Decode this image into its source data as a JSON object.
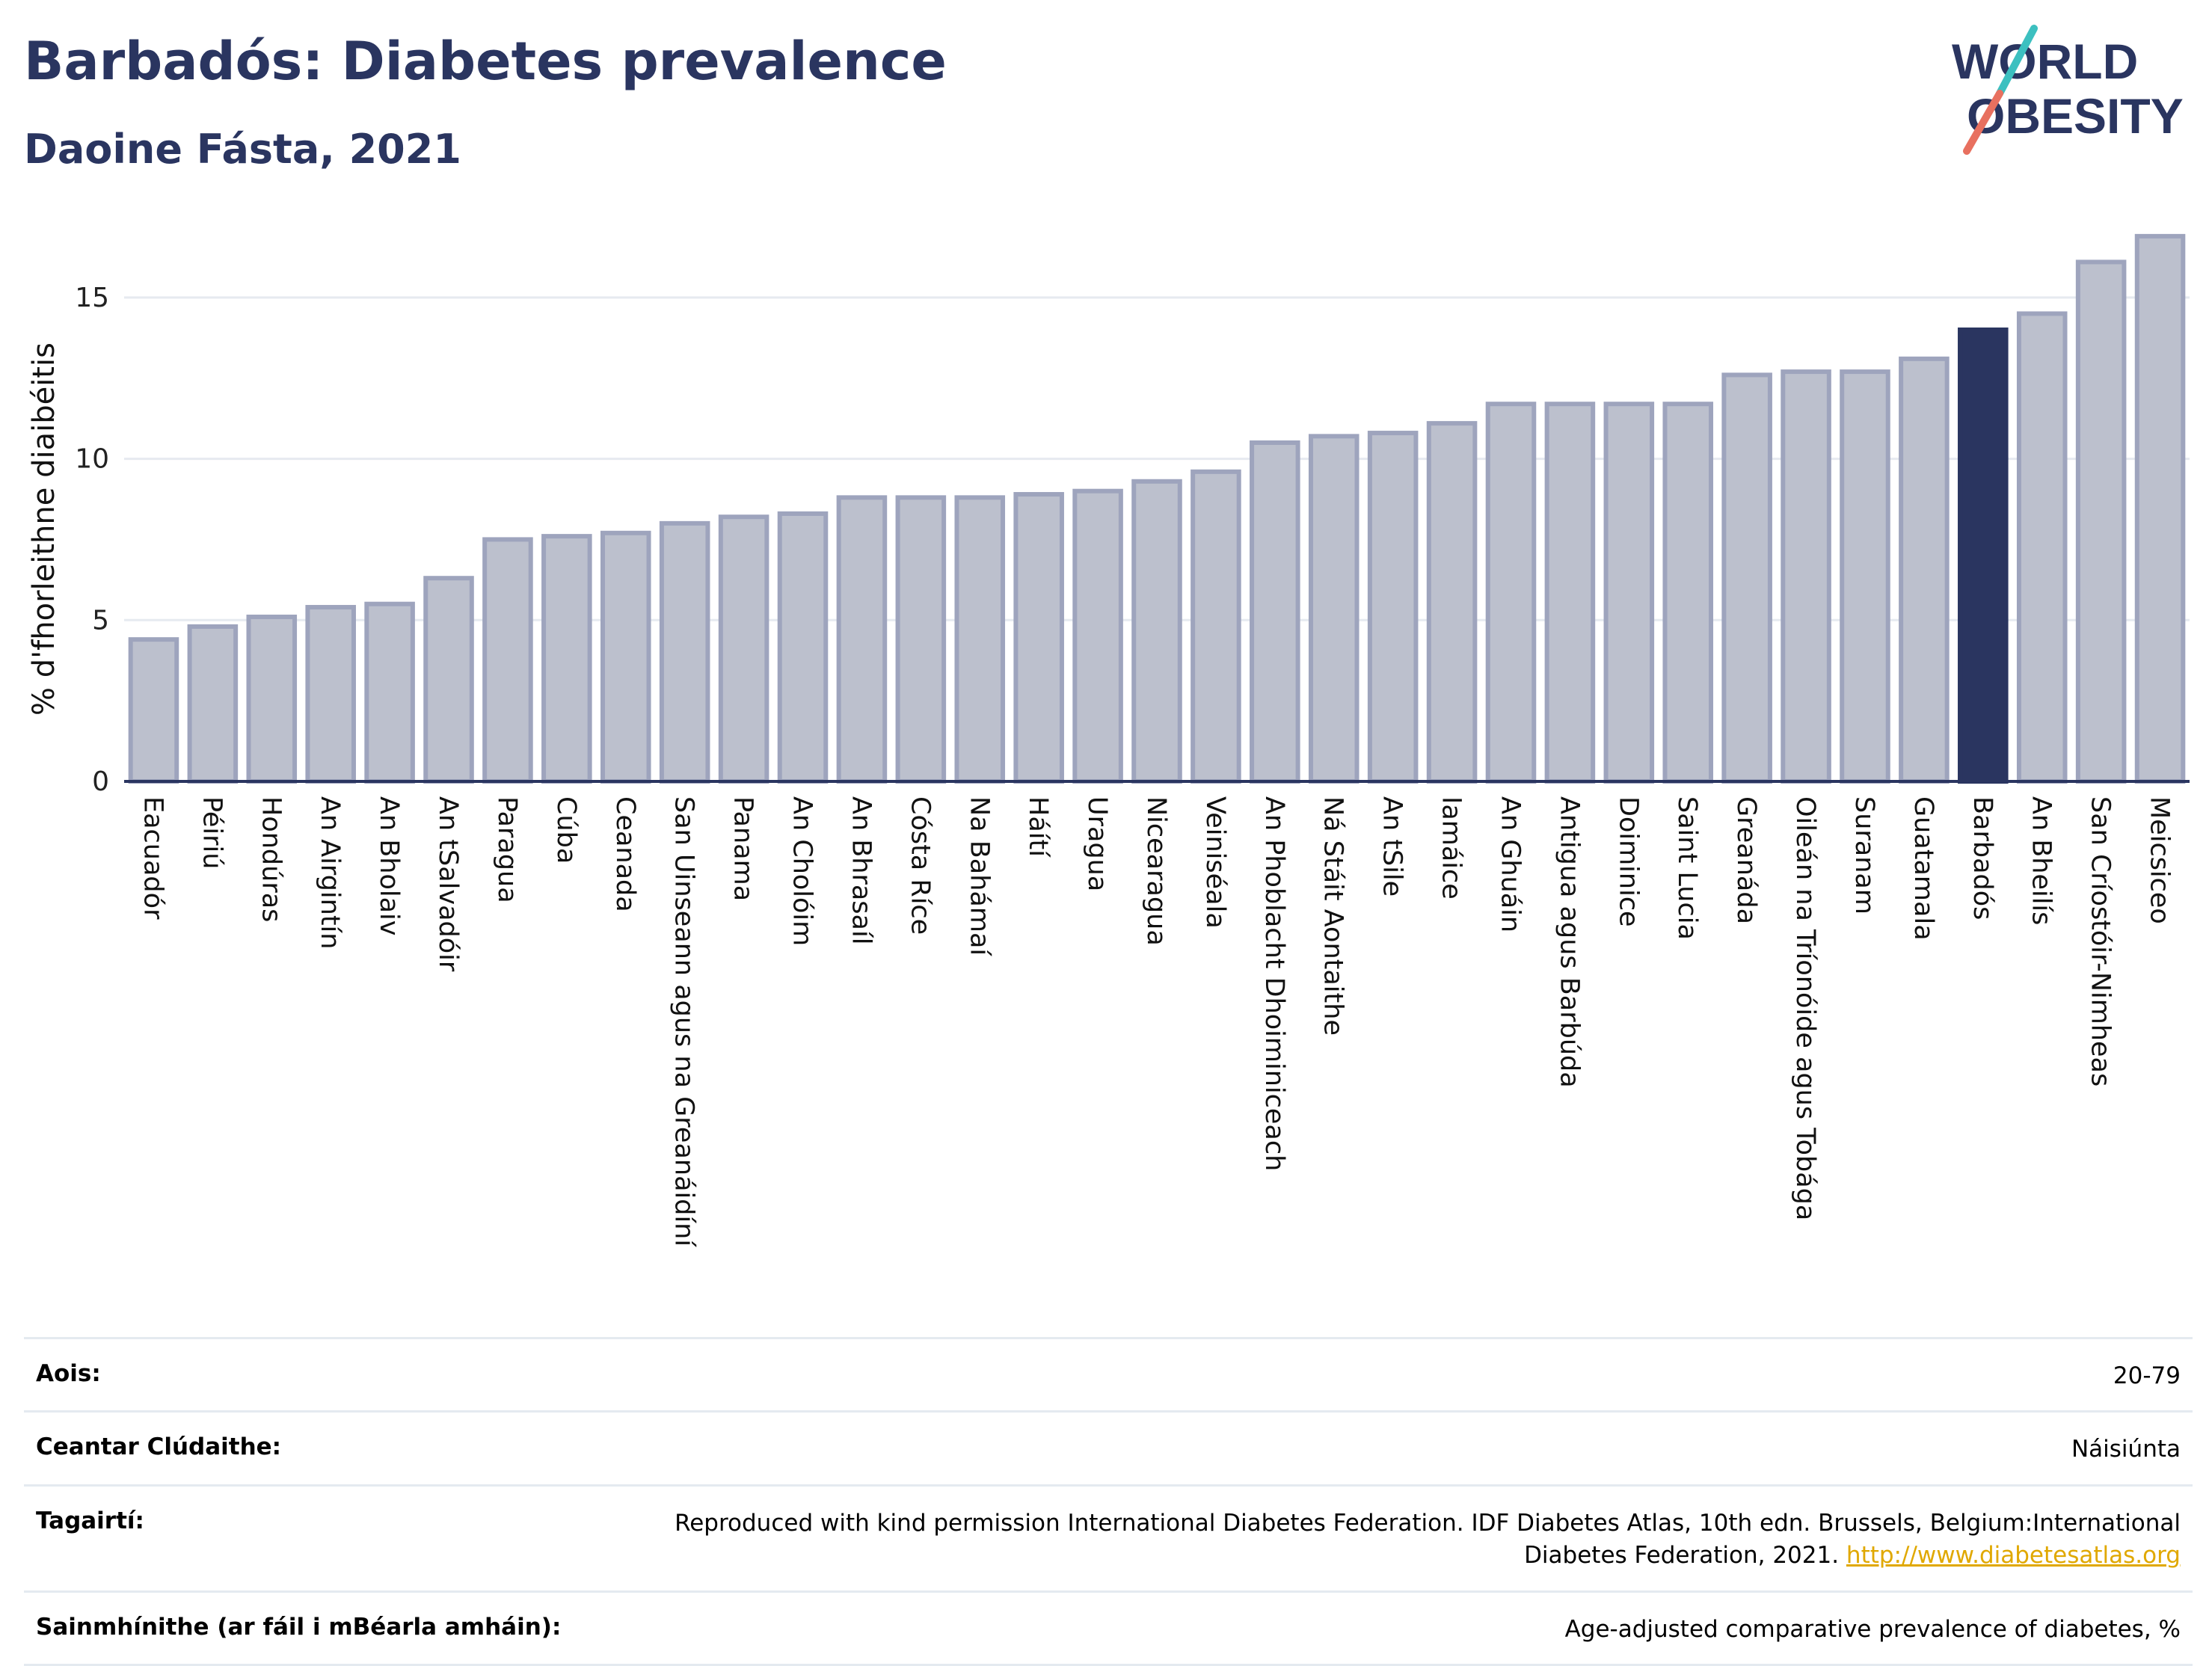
{
  "header": {
    "title": "Barbadós: Diabetes prevalence",
    "subtitle": "Daoine Fásta, 2021"
  },
  "logo": {
    "line1": "WORLD",
    "line2": "OBESITY"
  },
  "colors": {
    "default_bar": "#bcc0cd",
    "default_bar_stroke": "#9ea4bd",
    "highlight_bar": "#2a3560",
    "title": "#2a3560"
  },
  "chart_data": {
    "type": "bar",
    "title": "Barbadós: Diabetes prevalence",
    "subtitle": "Daoine Fásta, 2021",
    "xlabel": "",
    "ylabel": "% d'fhorleithne diaibéitis",
    "ylim": [
      0,
      17.5
    ],
    "yticks": [
      0,
      5,
      10,
      15
    ],
    "grid": true,
    "highlight": "Barbadós",
    "categories": [
      "Eacuadór",
      "Péiriú",
      "Hondúras",
      "An Airgintín",
      "An Bholaiv",
      "An tSalvadóir",
      "Paragua",
      "Cúba",
      "Ceanada",
      "San Uinseann agus na Greanáidíní",
      "Panama",
      "An Cholóim",
      "An Bhrasaíl",
      "Cósta Ríce",
      "Na Bahámaí",
      "Háítí",
      "Uragua",
      "Nicearagua",
      "Veiniséala",
      "An Phoblacht Dhoiminiceach",
      "Ná Stáit Aontaithe",
      "An tSile",
      "Iamáice",
      "An Ghuáin",
      "Antigua agus Barbúda",
      "Doiminice",
      "Saint Lucia",
      "Greanáda",
      "Oileán na Tríonóide agus Tobága",
      "Suranam",
      "Guatamala",
      "Barbadós",
      "An Bheilís",
      "San Críostóir-Nimheas",
      "Meicsiceo"
    ],
    "values": [
      4.4,
      4.8,
      5.1,
      5.4,
      5.5,
      6.3,
      7.5,
      7.6,
      7.7,
      8.0,
      8.2,
      8.3,
      8.8,
      8.8,
      8.8,
      8.9,
      9.0,
      9.3,
      9.6,
      10.5,
      10.7,
      10.8,
      11.1,
      11.7,
      11.7,
      11.7,
      11.7,
      12.6,
      12.7,
      12.7,
      13.1,
      14.0,
      14.5,
      16.1,
      16.9
    ]
  },
  "metadata": [
    {
      "label": "Aois:",
      "value": "20-79"
    },
    {
      "label": "Ceantar Clúdaithe:",
      "value": "Náisiúnta"
    },
    {
      "label": "Tagairtí:",
      "value": "Reproduced with kind permission International Diabetes Federation.  IDF Diabetes Atlas, 10th edn. Brussels, Belgium:International Diabetes Federation, 2021.",
      "link": "http://www.diabetesatlas.org"
    },
    {
      "label": "Sainmhínithe (ar fáil i mBéarla amháin):",
      "value": "Age-adjusted comparative prevalence of diabetes, %"
    }
  ]
}
